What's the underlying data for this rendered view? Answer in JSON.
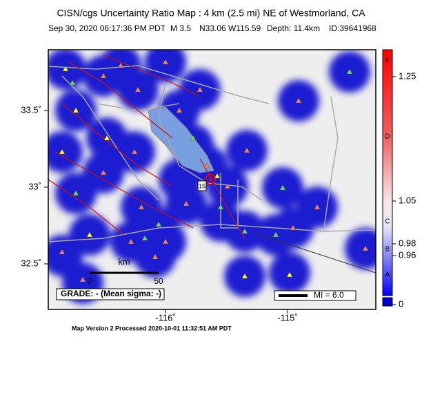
{
  "header": {
    "title": "CISN/cgs Uncertainty Ratio Map : 4 km (2.5 mi) NE of Westmorland, CA",
    "date": "Sep 30, 2020 06:17:36 PM PDT",
    "magnitude": "M 3.5",
    "location": "N33.06 W115.59",
    "depth": "Depth: 11.4km",
    "id": "ID:39641968"
  },
  "map": {
    "lat_ticks": [
      {
        "value": 33.5,
        "label": "33.5˚"
      },
      {
        "value": 33,
        "label": "33˚"
      },
      {
        "value": 32.5,
        "label": "32.5˚"
      }
    ],
    "lon_ticks": [
      {
        "value": -116,
        "label": "-116˚"
      },
      {
        "value": -115,
        "label": "-115˚"
      }
    ],
    "shield": "15",
    "scale_bar": {
      "unit": "km",
      "start": 0,
      "end": 50
    },
    "grade": "GRADE: - (Mean sigma: -)",
    "legend": "MI = 6.0"
  },
  "colorbar": {
    "grades": [
      "F",
      "D",
      "C",
      "B",
      "A"
    ],
    "ticks": [
      1.25,
      1.05,
      0.98,
      0.96,
      0
    ]
  },
  "footer": "Map Version 2 Processed 2020-10-01 11:32:51 AM PDT"
}
